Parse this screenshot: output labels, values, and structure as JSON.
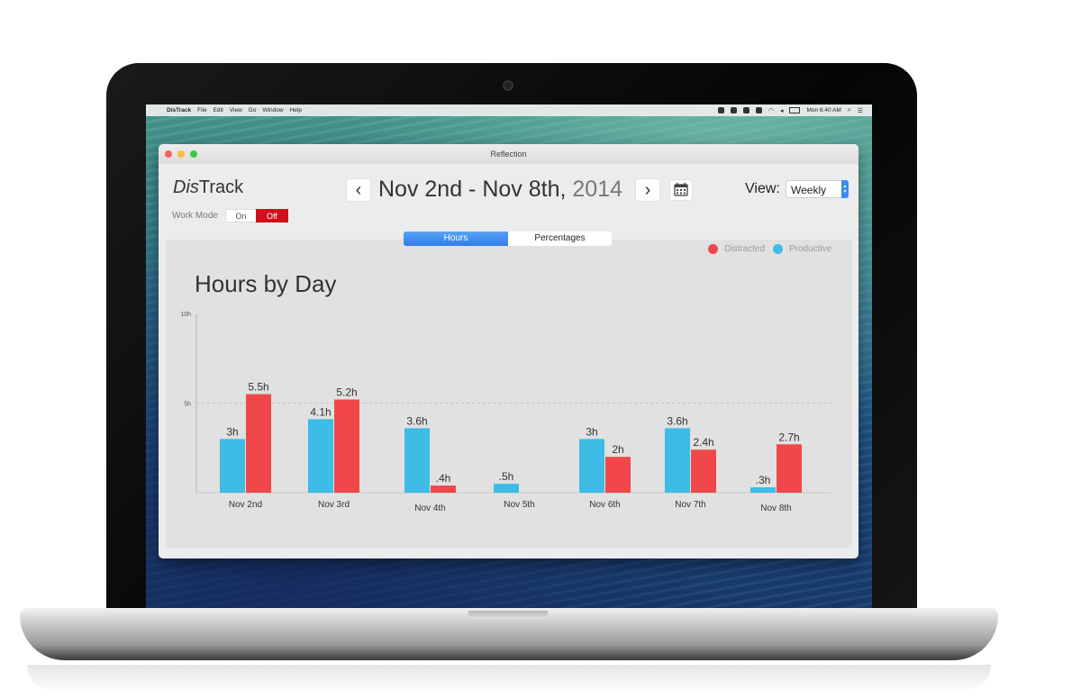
{
  "menubar": {
    "app": "DisTrack",
    "items": [
      "File",
      "Edit",
      "View",
      "Go",
      "Window",
      "Help"
    ],
    "clock": "Mon 6:40 AM"
  },
  "window": {
    "title": "Reflection",
    "app_name_part1": "Dis",
    "app_name_part2": "Track",
    "work_mode": {
      "label": "Work Mode",
      "on": "On",
      "off": "Off",
      "selected": "Off"
    },
    "prev_label": "‹",
    "next_label": "›",
    "date_range": "Nov 2nd - Nov 8th,",
    "year": "2014",
    "view_label": "View:",
    "view_value": "Weekly",
    "tabs": [
      {
        "label": "Hours",
        "active": true
      },
      {
        "label": "Percentages",
        "active": false
      }
    ],
    "legend": [
      {
        "label": "Distracted",
        "color": "#f0484a"
      },
      {
        "label": "Productive",
        "color": "#3dbce6"
      }
    ]
  },
  "colors": {
    "productive": "#3dbce6",
    "distracted": "#f0484a",
    "work_off": "#d0101c",
    "tab_active": "#2f7de8"
  },
  "chart_data": {
    "type": "bar",
    "title": "Hours by Day",
    "categories": [
      "Nov 2nd",
      "Nov 3rd",
      "Nov 4th",
      "Nov 5th",
      "Nov 6th",
      "Nov 7th",
      "Nov 8th"
    ],
    "series": [
      {
        "name": "Productive",
        "values": [
          3,
          4.1,
          3.6,
          0.5,
          3,
          3.6,
          0.3
        ],
        "labels": [
          "3h",
          "4.1h",
          "3.6h",
          ".5h",
          "3h",
          "3.6h",
          ".3h"
        ]
      },
      {
        "name": "Distracted",
        "values": [
          5.5,
          5.2,
          0.4,
          0,
          2,
          2.4,
          2.7
        ],
        "labels": [
          "5.5h",
          "5.2h",
          ".4h",
          "",
          "2h",
          "2.4h",
          "2.7h"
        ]
      }
    ],
    "yticks": [
      {
        "value": 10,
        "label": "10h"
      },
      {
        "value": 5,
        "label": "5h"
      }
    ],
    "ylim": [
      0,
      10
    ],
    "grid": "dashed line at 5h"
  }
}
